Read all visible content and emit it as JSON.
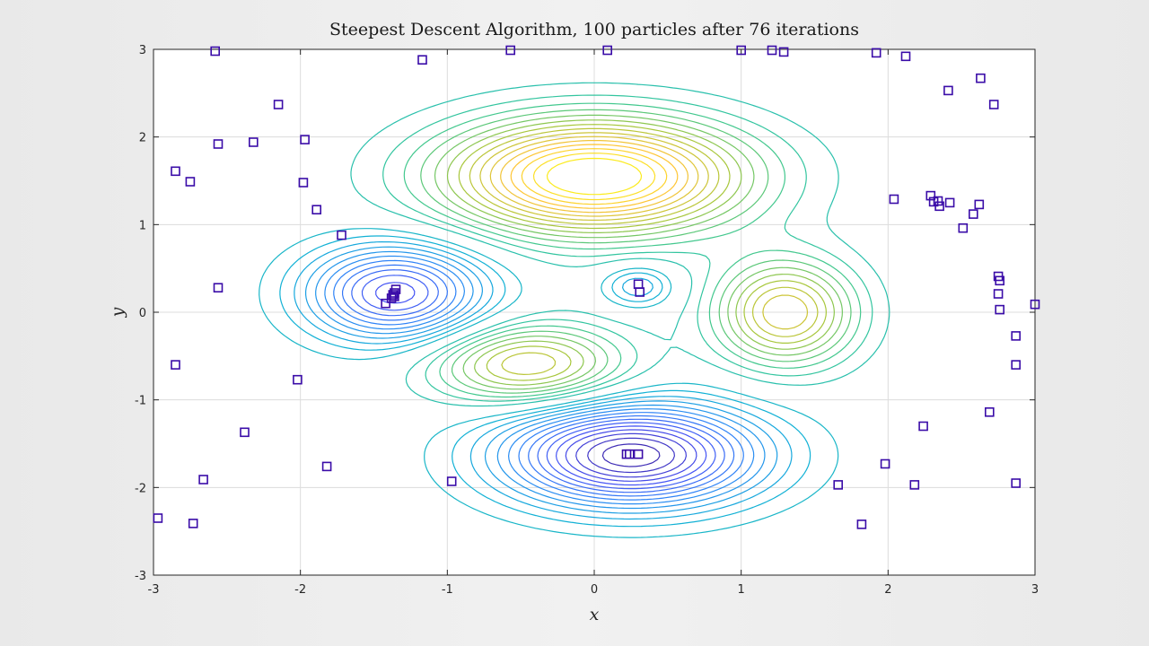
{
  "chart_data": {
    "type": "scatter",
    "overlay": "contour",
    "title": "Steepest Descent Algorithm, 100 particles after 76 iterations",
    "xlabel": "x",
    "ylabel": "y",
    "xlim": [
      -3,
      3
    ],
    "ylim": [
      -3,
      3
    ],
    "xticks": [
      -3,
      -2,
      -1,
      0,
      1,
      2,
      3
    ],
    "yticks": [
      -3,
      -2,
      -1,
      0,
      1,
      2,
      3
    ],
    "xtick_labels": [
      "-3",
      "-2",
      "-1",
      "0",
      "1",
      "2",
      "3"
    ],
    "ytick_labels": [
      "-3",
      "-2",
      "-1",
      "0",
      "1",
      "2",
      "3"
    ],
    "grid": true,
    "marker": "square",
    "marker_color": "#3a0ca8",
    "colormap": "parula",
    "contour_features": [
      {
        "kind": "maximum",
        "x": 0.0,
        "y": 1.55
      },
      {
        "kind": "maximum",
        "x": 1.3,
        "y": 0.0
      },
      {
        "kind": "maximum",
        "x": -0.45,
        "y": -0.6
      },
      {
        "kind": "minimum",
        "x": 0.25,
        "y": -1.63
      },
      {
        "kind": "minimum",
        "x": -1.35,
        "y": 0.22
      },
      {
        "kind": "minimum",
        "x": 0.3,
        "y": 0.3
      }
    ],
    "particles": [
      [
        -2.58,
        2.98
      ],
      [
        -1.17,
        2.88
      ],
      [
        -0.57,
        2.99
      ],
      [
        0.09,
        2.99
      ],
      [
        1.0,
        2.99
      ],
      [
        1.21,
        2.99
      ],
      [
        1.29,
        2.97
      ],
      [
        1.92,
        2.96
      ],
      [
        2.12,
        2.92
      ],
      [
        -2.15,
        2.37
      ],
      [
        2.41,
        2.53
      ],
      [
        2.63,
        2.67
      ],
      [
        2.72,
        2.37
      ],
      [
        -2.56,
        1.92
      ],
      [
        -2.32,
        1.94
      ],
      [
        -1.97,
        1.97
      ],
      [
        -2.85,
        1.61
      ],
      [
        -2.75,
        1.49
      ],
      [
        -1.98,
        1.48
      ],
      [
        -1.89,
        1.17
      ],
      [
        -1.72,
        0.88
      ],
      [
        2.04,
        1.29
      ],
      [
        2.29,
        1.33
      ],
      [
        2.31,
        1.26
      ],
      [
        2.34,
        1.27
      ],
      [
        2.35,
        1.21
      ],
      [
        2.42,
        1.25
      ],
      [
        2.51,
        0.96
      ],
      [
        2.58,
        1.12
      ],
      [
        2.62,
        1.23
      ],
      [
        -2.56,
        0.28
      ],
      [
        -1.35,
        0.26
      ],
      [
        -1.36,
        0.22
      ],
      [
        -1.37,
        0.2
      ],
      [
        -1.36,
        0.18
      ],
      [
        -1.38,
        0.16
      ],
      [
        -1.42,
        0.1
      ],
      [
        0.3,
        0.32
      ],
      [
        0.31,
        0.23
      ],
      [
        2.75,
        0.41
      ],
      [
        2.76,
        0.36
      ],
      [
        2.75,
        0.21
      ],
      [
        2.76,
        0.03
      ],
      [
        3.0,
        0.09
      ],
      [
        -2.85,
        -0.6
      ],
      [
        -2.02,
        -0.77
      ],
      [
        2.87,
        -0.27
      ],
      [
        2.87,
        -0.6
      ],
      [
        -2.38,
        -1.37
      ],
      [
        -1.82,
        -1.76
      ],
      [
        -0.97,
        -1.93
      ],
      [
        0.22,
        -1.62
      ],
      [
        0.24,
        -1.62
      ],
      [
        0.3,
        -1.62
      ],
      [
        1.66,
        -1.97
      ],
      [
        1.98,
        -1.73
      ],
      [
        2.18,
        -1.97
      ],
      [
        2.24,
        -1.3
      ],
      [
        2.69,
        -1.14
      ],
      [
        2.87,
        -1.95
      ],
      [
        -2.66,
        -1.91
      ],
      [
        -2.73,
        -2.41
      ],
      [
        -2.97,
        -2.35
      ],
      [
        1.82,
        -2.42
      ]
    ]
  }
}
